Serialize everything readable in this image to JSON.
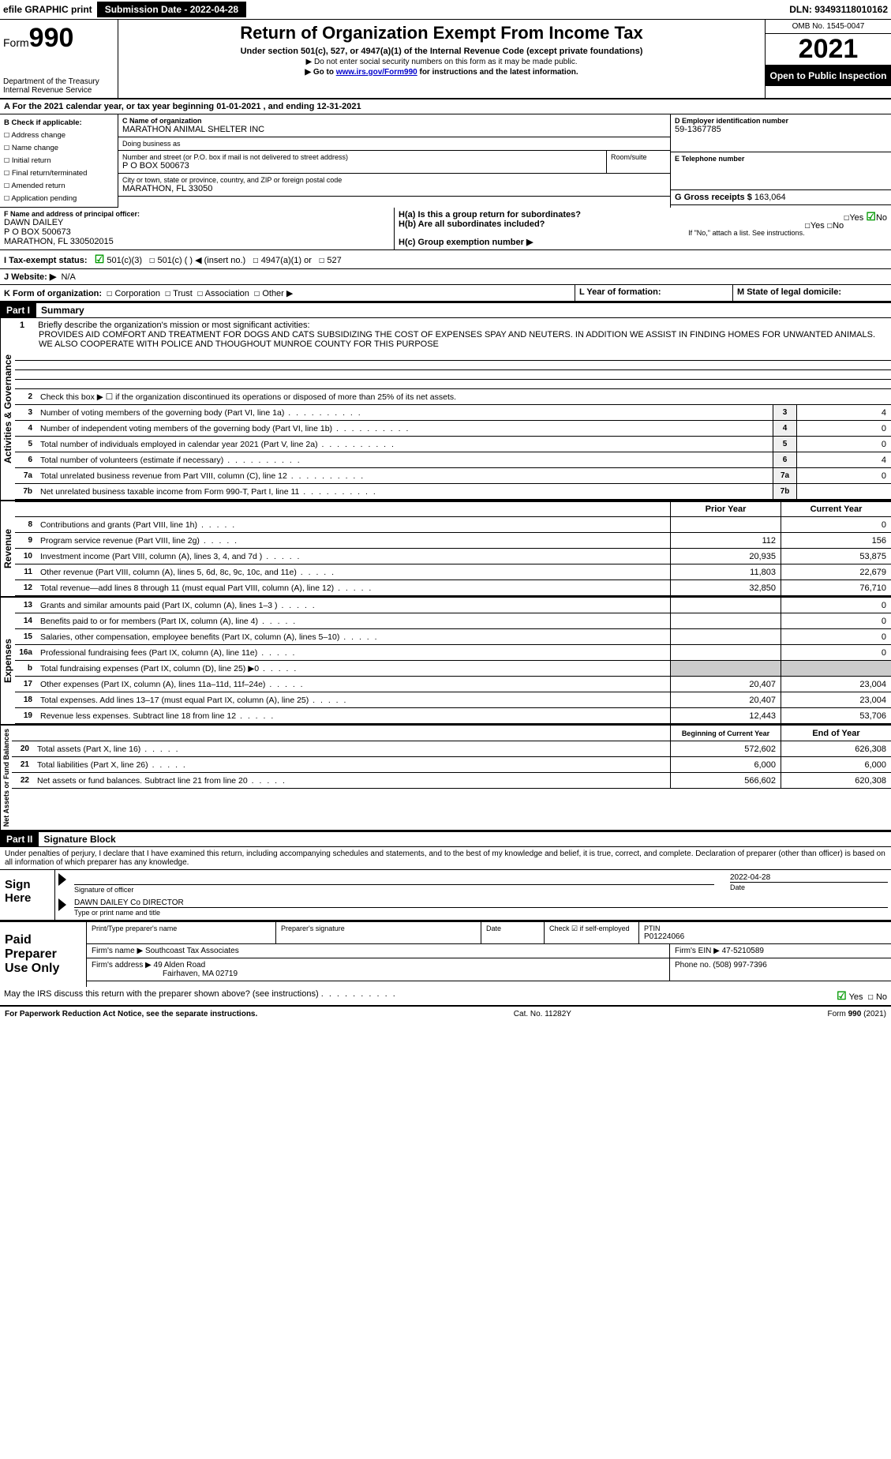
{
  "topbar": {
    "efile": "efile GRAPHIC print",
    "submission": "Submission Date - 2022-04-28",
    "dln": "DLN: 93493118010162"
  },
  "header": {
    "form_prefix": "Form",
    "form_number": "990",
    "title": "Return of Organization Exempt From Income Tax",
    "subtitle": "Under section 501(c), 527, or 4947(a)(1) of the Internal Revenue Code (except private foundations)",
    "note1": "▶ Do not enter social security numbers on this form as it may be made public.",
    "note2_prefix": "▶ Go to ",
    "note2_link": "www.irs.gov/Form990",
    "note2_suffix": " for instructions and the latest information.",
    "dept": "Department of the Treasury\nInternal Revenue Service",
    "omb": "OMB No. 1545-0047",
    "year": "2021",
    "open": "Open to Public Inspection"
  },
  "period": {
    "line": "A For the 2021 calendar year, or tax year beginning 01-01-2021     , and ending 12-31-2021"
  },
  "sectionB": {
    "label": "B Check if applicable:",
    "opts": [
      "Address change",
      "Name change",
      "Initial return",
      "Final return/terminated",
      "Amended return",
      "Application pending"
    ]
  },
  "sectionC": {
    "label": "C Name of organization",
    "name": "MARATHON ANIMAL SHELTER INC",
    "dba_label": "Doing business as",
    "dba": "",
    "addr_label": "Number and street (or P.O. box if mail is not delivered to street address)",
    "room_label": "Room/suite",
    "addr": "P O BOX 500673",
    "city_label": "City or town, state or province, country, and ZIP or foreign postal code",
    "city": "MARATHON, FL  33050"
  },
  "sectionD": {
    "label": "D Employer identification number",
    "value": "59-1367785"
  },
  "sectionE": {
    "label": "E Telephone number",
    "value": ""
  },
  "sectionG": {
    "label": "G Gross receipts $",
    "value": "163,064"
  },
  "sectionF": {
    "label": "F  Name and address of principal officer:",
    "name": "DAWN DAILEY",
    "addr1": "P O BOX 500673",
    "addr2": "MARATHON, FL  330502015"
  },
  "sectionH": {
    "a": "H(a)  Is this a group return for subordinates?",
    "b": "H(b)  Are all subordinates included?",
    "b_note": "If \"No,\" attach a list. See instructions.",
    "c": "H(c)  Group exemption number ▶",
    "yes": "Yes",
    "no": "No"
  },
  "sectionI": {
    "label": "I Tax-exempt status:",
    "opt1": "501(c)(3)",
    "opt2": "501(c) (  ) ◀ (insert no.)",
    "opt3": "4947(a)(1) or",
    "opt4": "527"
  },
  "sectionJ": {
    "label": "J  Website: ▶",
    "value": "N/A"
  },
  "sectionK": {
    "label": "K Form of organization:",
    "opts": [
      "Corporation",
      "Trust",
      "Association",
      "Other ▶"
    ]
  },
  "sectionL": {
    "label": "L Year of formation:",
    "value": ""
  },
  "sectionM": {
    "label": "M State of legal domicile:",
    "value": ""
  },
  "part1": {
    "header": "Part I",
    "title": "Summary",
    "line1_label": "1",
    "line1_text": "Briefly describe the organization's mission or most significant activities:",
    "mission": "PROVIDES AID COMFORT AND TREATMENT FOR DOGS AND CATS SUBSIDIZING THE COST OF EXPENSES SPAY AND NEUTERS. IN ADDITION WE ASSIST IN FINDING HOMES FOR UNWANTED ANIMALS. WE ALSO COOPERATE WITH POLICE AND THOUGHOUT MUNROE COUNTY FOR THIS PURPOSE",
    "line2": "Check this box ▶ ☐ if the organization discontinued its operations or disposed of more than 25% of its net assets.",
    "vlabel_gov": "Activities & Governance",
    "vlabel_rev": "Revenue",
    "vlabel_exp": "Expenses",
    "vlabel_net": "Net Assets or Fund Balances",
    "lines_gov": [
      {
        "n": "3",
        "d": "Number of voting members of the governing body (Part VI, line 1a)",
        "v": "4"
      },
      {
        "n": "4",
        "d": "Number of independent voting members of the governing body (Part VI, line 1b)",
        "v": "0"
      },
      {
        "n": "5",
        "d": "Total number of individuals employed in calendar year 2021 (Part V, line 2a)",
        "v": "0"
      },
      {
        "n": "6",
        "d": "Total number of volunteers (estimate if necessary)",
        "v": "4"
      },
      {
        "n": "7a",
        "d": "Total unrelated business revenue from Part VIII, column (C), line 12",
        "v": "0"
      },
      {
        "n": "7b",
        "d": "Net unrelated business taxable income from Form 990-T, Part I, line 11",
        "v": ""
      }
    ],
    "col_prior": "Prior Year",
    "col_current": "Current Year",
    "lines_rev": [
      {
        "n": "8",
        "d": "Contributions and grants (Part VIII, line 1h)",
        "p": "",
        "c": "0"
      },
      {
        "n": "9",
        "d": "Program service revenue (Part VIII, line 2g)",
        "p": "112",
        "c": "156"
      },
      {
        "n": "10",
        "d": "Investment income (Part VIII, column (A), lines 3, 4, and 7d )",
        "p": "20,935",
        "c": "53,875"
      },
      {
        "n": "11",
        "d": "Other revenue (Part VIII, column (A), lines 5, 6d, 8c, 9c, 10c, and 11e)",
        "p": "11,803",
        "c": "22,679"
      },
      {
        "n": "12",
        "d": "Total revenue—add lines 8 through 11 (must equal Part VIII, column (A), line 12)",
        "p": "32,850",
        "c": "76,710"
      }
    ],
    "lines_exp": [
      {
        "n": "13",
        "d": "Grants and similar amounts paid (Part IX, column (A), lines 1–3 )",
        "p": "",
        "c": "0"
      },
      {
        "n": "14",
        "d": "Benefits paid to or for members (Part IX, column (A), line 4)",
        "p": "",
        "c": "0"
      },
      {
        "n": "15",
        "d": "Salaries, other compensation, employee benefits (Part IX, column (A), lines 5–10)",
        "p": "",
        "c": "0"
      },
      {
        "n": "16a",
        "d": "Professional fundraising fees (Part IX, column (A), line 11e)",
        "p": "",
        "c": "0"
      },
      {
        "n": "b",
        "d": "Total fundraising expenses (Part IX, column (D), line 25) ▶0",
        "p": null,
        "c": null
      },
      {
        "n": "17",
        "d": "Other expenses (Part IX, column (A), lines 11a–11d, 11f–24e)",
        "p": "20,407",
        "c": "23,004"
      },
      {
        "n": "18",
        "d": "Total expenses. Add lines 13–17 (must equal Part IX, column (A), line 25)",
        "p": "20,407",
        "c": "23,004"
      },
      {
        "n": "19",
        "d": "Revenue less expenses. Subtract line 18 from line 12",
        "p": "12,443",
        "c": "53,706"
      }
    ],
    "col_begin": "Beginning of Current Year",
    "col_end": "End of Year",
    "lines_net": [
      {
        "n": "20",
        "d": "Total assets (Part X, line 16)",
        "p": "572,602",
        "c": "626,308"
      },
      {
        "n": "21",
        "d": "Total liabilities (Part X, line 26)",
        "p": "6,000",
        "c": "6,000"
      },
      {
        "n": "22",
        "d": "Net assets or fund balances. Subtract line 21 from line 20",
        "p": "566,602",
        "c": "620,308"
      }
    ]
  },
  "part2": {
    "header": "Part II",
    "title": "Signature Block",
    "decl": "Under penalties of perjury, I declare that I have examined this return, including accompanying schedules and statements, and to the best of my knowledge and belief, it is true, correct, and complete. Declaration of preparer (other than officer) is based on all information of which preparer has any knowledge.",
    "sign_here": "Sign Here",
    "sig_officer": "Signature of officer",
    "sig_date": "Date",
    "sig_date_val": "2022-04-28",
    "sig_name": "DAWN DAILEY Co DIRECTOR",
    "sig_name_label": "Type or print name and title"
  },
  "preparer": {
    "label": "Paid Preparer Use Only",
    "h_name": "Print/Type preparer's name",
    "h_sig": "Preparer's signature",
    "h_date": "Date",
    "h_check": "Check ☑ if self-employed",
    "h_ptin": "PTIN",
    "ptin": "P01224066",
    "firm_name_label": "Firm's name    ▶",
    "firm_name": "Southcoast Tax Associates",
    "firm_ein_label": "Firm's EIN ▶",
    "firm_ein": "47-5210589",
    "firm_addr_label": "Firm's address ▶",
    "firm_addr1": "49 Alden Road",
    "firm_addr2": "Fairhaven, MA  02719",
    "phone_label": "Phone no.",
    "phone": "(508) 997-7396"
  },
  "discuss": {
    "text": "May the IRS discuss this return with the preparer shown above? (see instructions)",
    "yes": "Yes",
    "no": "No"
  },
  "footer": {
    "left": "For Paperwork Reduction Act Notice, see the separate instructions.",
    "mid": "Cat. No. 11282Y",
    "right_prefix": "Form ",
    "right_form": "990",
    "right_suffix": " (2021)"
  }
}
